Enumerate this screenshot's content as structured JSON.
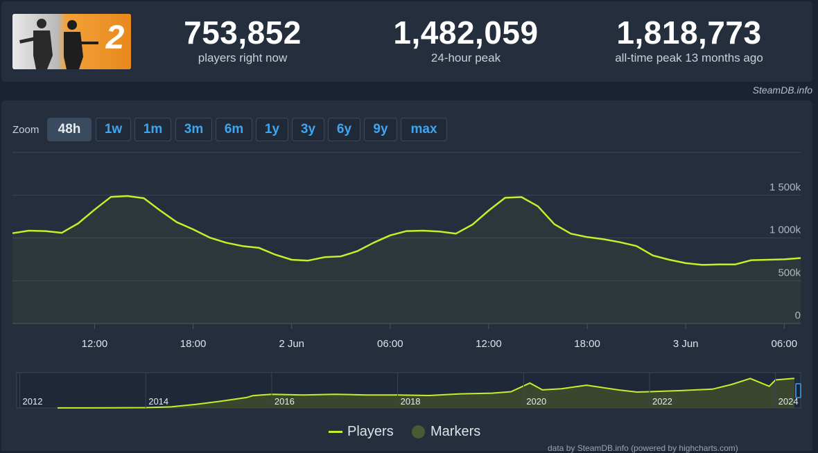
{
  "header": {
    "game_image": "counter-strike-2-banner",
    "stats": [
      {
        "value": "753,852",
        "label": "players right now"
      },
      {
        "value": "1,482,059",
        "label": "24-hour peak"
      },
      {
        "value": "1,818,773",
        "label": "all-time peak 13 months ago"
      }
    ],
    "watermark": "SteamDB.info"
  },
  "zoom": {
    "label": "Zoom",
    "options": [
      "48h",
      "1w",
      "1m",
      "3m",
      "6m",
      "1y",
      "3y",
      "6y",
      "9y",
      "max"
    ],
    "selected": "48h"
  },
  "chart_data": [
    {
      "type": "area",
      "series": [
        {
          "name": "Players",
          "x": [
            "2024-06-01 07:00",
            "2024-06-01 08:00",
            "2024-06-01 09:00",
            "2024-06-01 10:00",
            "2024-06-01 11:00",
            "2024-06-01 12:00",
            "2024-06-01 13:00",
            "2024-06-01 14:00",
            "2024-06-01 15:00",
            "2024-06-01 16:00",
            "2024-06-01 17:00",
            "2024-06-01 18:00",
            "2024-06-01 19:00",
            "2024-06-01 20:00",
            "2024-06-01 21:00",
            "2024-06-01 22:00",
            "2024-06-01 23:00",
            "2024-06-02 00:00",
            "2024-06-02 01:00",
            "2024-06-02 02:00",
            "2024-06-02 03:00",
            "2024-06-02 04:00",
            "2024-06-02 05:00",
            "2024-06-02 06:00",
            "2024-06-02 07:00",
            "2024-06-02 08:00",
            "2024-06-02 09:00",
            "2024-06-02 10:00",
            "2024-06-02 11:00",
            "2024-06-02 12:00",
            "2024-06-02 13:00",
            "2024-06-02 14:00",
            "2024-06-02 15:00",
            "2024-06-02 16:00",
            "2024-06-02 17:00",
            "2024-06-02 18:00",
            "2024-06-02 19:00",
            "2024-06-02 20:00",
            "2024-06-02 21:00",
            "2024-06-02 22:00",
            "2024-06-02 23:00",
            "2024-06-03 00:00",
            "2024-06-03 01:00",
            "2024-06-03 02:00",
            "2024-06-03 03:00",
            "2024-06-03 04:00",
            "2024-06-03 05:00",
            "2024-06-03 06:00",
            "2024-06-03 07:00"
          ],
          "values": [
            1055000,
            1085000,
            1080000,
            1060000,
            1170000,
            1330000,
            1480000,
            1490000,
            1465000,
            1320000,
            1185000,
            1100000,
            1005000,
            945000,
            905000,
            885000,
            805000,
            745000,
            735000,
            775000,
            785000,
            845000,
            945000,
            1030000,
            1080000,
            1085000,
            1075000,
            1050000,
            1155000,
            1320000,
            1470000,
            1478000,
            1370000,
            1160000,
            1050000,
            1010000,
            985000,
            950000,
            905000,
            795000,
            745000,
            705000,
            685000,
            690000,
            690000,
            740000,
            745000,
            750000,
            765000
          ]
        }
      ],
      "x_ticks": [
        "12:00",
        "18:00",
        "2 Jun",
        "06:00",
        "12:00",
        "18:00",
        "3 Jun",
        "06:00"
      ],
      "y_ticks": [
        "0",
        "500k",
        "1 000k",
        "1 500k"
      ],
      "ylim": [
        0,
        2000000
      ],
      "legend": [
        "Players",
        "Markers"
      ]
    },
    {
      "type": "area",
      "series": [
        {
          "name": "Players",
          "x": [
            2012.6,
            2013.0,
            2013.5,
            2014.0,
            2014.4,
            2014.8,
            2015.2,
            2015.6,
            2015.7,
            2016.0,
            2016.5,
            2017.0,
            2017.5,
            2018.0,
            2018.5,
            2019.0,
            2019.5,
            2019.8,
            2020.1,
            2020.3,
            2020.6,
            2021.0,
            2021.5,
            2021.8,
            2022.0,
            2022.5,
            2023.0,
            2023.3,
            2023.6,
            2023.9,
            2024.0,
            2024.3
          ],
          "values": [
            2000,
            5000,
            10000,
            20000,
            60000,
            200000,
            380000,
            580000,
            680000,
            760000,
            720000,
            760000,
            720000,
            720000,
            690000,
            780000,
            820000,
            900000,
            1380000,
            1000000,
            1060000,
            1260000,
            1000000,
            880000,
            900000,
            960000,
            1040000,
            1300000,
            1630000,
            1200000,
            1550000,
            1640000
          ]
        }
      ],
      "x_ticks": [
        "2012",
        "2014",
        "2016",
        "2018",
        "2020",
        "2022",
        "2024"
      ]
    }
  ],
  "legend": {
    "players": "Players",
    "markers": "Markers"
  },
  "footer": {
    "note": "data by SteamDB.info (powered by highcharts.com)"
  },
  "colors": {
    "line": "#c8ee2a",
    "background": "#1b2332",
    "panel": "#242e3d",
    "accent": "#3ea6f0",
    "header_image": "#e8891c"
  }
}
